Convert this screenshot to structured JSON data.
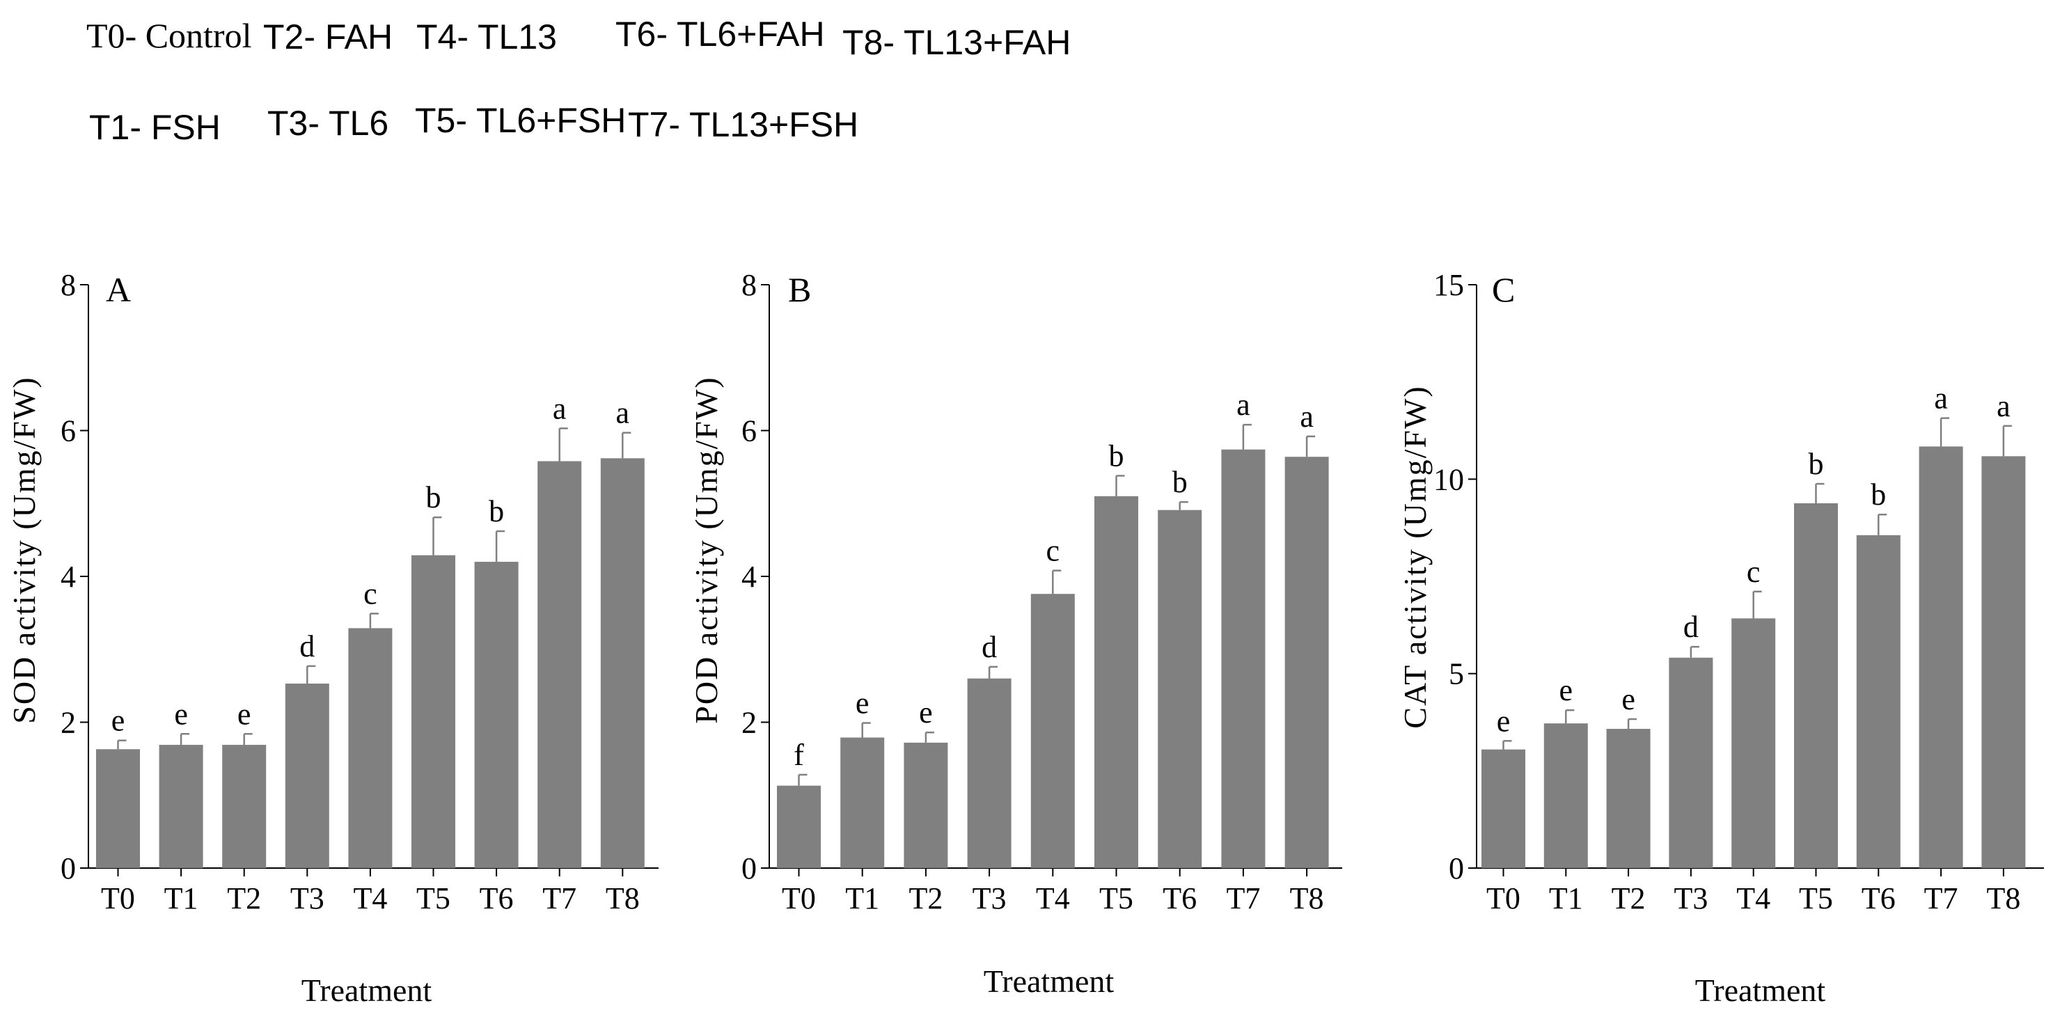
{
  "legend": [
    {
      "text": "T0- Control",
      "font": "serif"
    },
    {
      "text": "T2- FAH",
      "font": "sans"
    },
    {
      "text": "T4- TL13",
      "font": "sans"
    },
    {
      "text": "T6- TL6+FAH",
      "font": "sans"
    },
    {
      "text": "T8- TL13+FAH",
      "font": "sans"
    },
    {
      "text": "T1- FSH",
      "font": "sans"
    },
    {
      "text": "T3- TL6",
      "font": "sans"
    },
    {
      "text": "T5- TL6+FSH",
      "font": "sans"
    },
    {
      "text": "T7- TL13+FSH",
      "font": "sans"
    }
  ],
  "style": {
    "bar_color": "#808080",
    "axis_color": "#000000",
    "text_color": "#000000"
  },
  "chart_data": [
    {
      "type": "bar",
      "panel": "A",
      "categories": [
        "T0",
        "T1",
        "T2",
        "T3",
        "T4",
        "T5",
        "T6",
        "T7",
        "T8"
      ],
      "values": [
        1.63,
        1.69,
        1.69,
        2.53,
        3.29,
        4.29,
        4.2,
        5.58,
        5.62
      ],
      "errors": [
        0.12,
        0.15,
        0.15,
        0.24,
        0.2,
        0.52,
        0.42,
        0.45,
        0.35
      ],
      "labels": [
        "e",
        "e",
        "e",
        "d",
        "c",
        "b",
        "b",
        "a",
        "a"
      ],
      "ylabel": "SOD activity (Umg/FW)",
      "xlabel": "Treatment",
      "ylim": [
        0,
        8
      ],
      "yticks": [
        0,
        2,
        4,
        6,
        8
      ],
      "grid": false
    },
    {
      "type": "bar",
      "panel": "B",
      "categories": [
        "T0",
        "T1",
        "T2",
        "T3",
        "T4",
        "T5",
        "T6",
        "T7",
        "T8"
      ],
      "values": [
        1.13,
        1.79,
        1.72,
        2.6,
        3.76,
        5.1,
        4.91,
        5.74,
        5.64
      ],
      "errors": [
        0.15,
        0.2,
        0.14,
        0.16,
        0.32,
        0.28,
        0.11,
        0.34,
        0.28
      ],
      "labels": [
        "f",
        "e",
        "e",
        "d",
        "c",
        "b",
        "b",
        "a",
        "a"
      ],
      "ylabel": "POD activity (Umg/FW)",
      "xlabel": "Treatment",
      "ylim": [
        0,
        8
      ],
      "yticks": [
        0,
        2,
        4,
        6,
        8
      ],
      "grid": false
    },
    {
      "type": "bar",
      "panel": "C",
      "categories": [
        "T0",
        "T1",
        "T2",
        "T3",
        "T4",
        "T5",
        "T6",
        "T7",
        "T8"
      ],
      "values": [
        3.05,
        3.72,
        3.58,
        5.41,
        6.42,
        9.38,
        8.56,
        10.84,
        10.59
      ],
      "errors": [
        0.22,
        0.34,
        0.25,
        0.28,
        0.69,
        0.5,
        0.53,
        0.73,
        0.78
      ],
      "labels": [
        "e",
        "e",
        "e",
        "d",
        "c",
        "b",
        "b",
        "a",
        "a"
      ],
      "ylabel": "CAT activity (Umg/FW)",
      "xlabel": "Treatment",
      "ylim": [
        0,
        15
      ],
      "yticks": [
        0,
        5,
        10,
        15
      ],
      "grid": false
    }
  ]
}
